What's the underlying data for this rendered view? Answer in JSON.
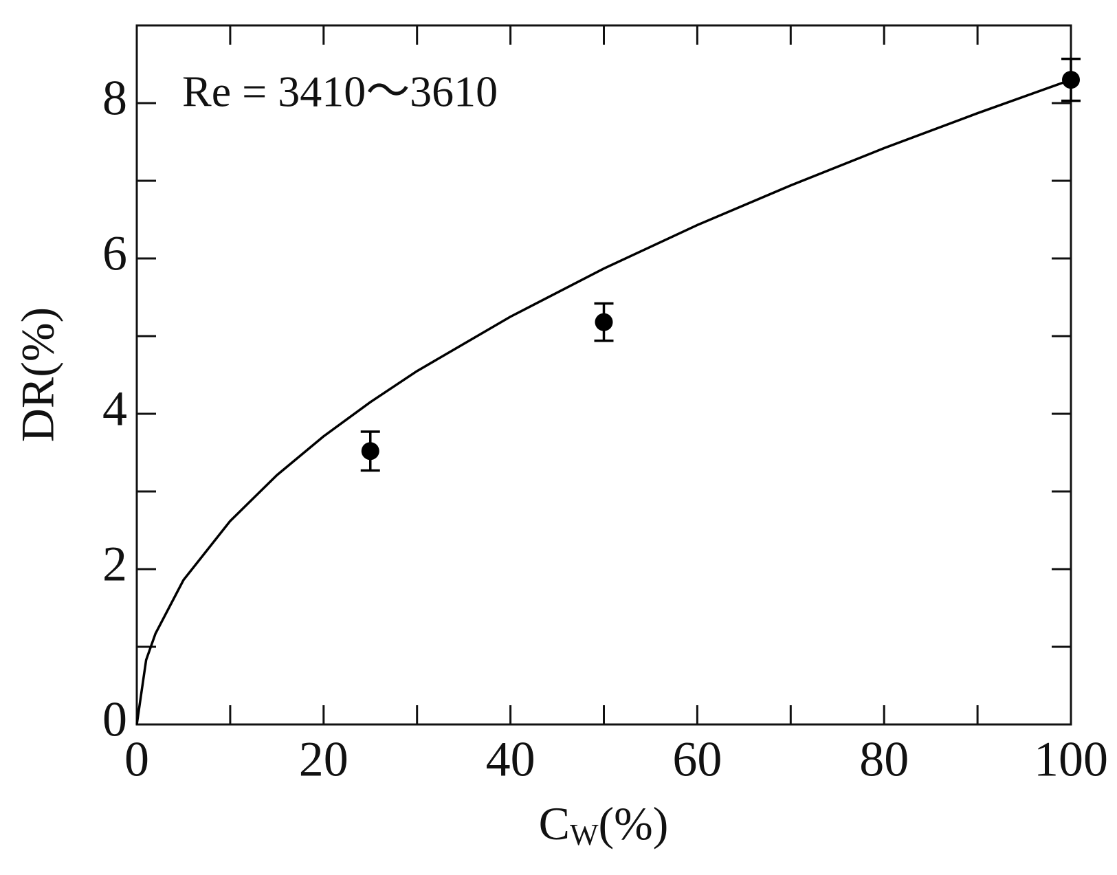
{
  "chart_data": {
    "type": "scatter",
    "annotation": "Re = 3410～3610",
    "x_label": {
      "base": "C",
      "subscript": "W",
      "suffix": "(%)"
    },
    "y_label": "DR(%)",
    "xlim": [
      0,
      100
    ],
    "xticks": [
      0,
      20,
      40,
      60,
      80,
      100
    ],
    "x_minor_ticks": [
      10,
      30,
      50,
      70,
      90
    ],
    "ylim": [
      0,
      9
    ],
    "yticks": [
      0,
      2,
      4,
      6,
      8
    ],
    "y_minor_ticks": [
      1,
      3,
      5,
      7,
      9
    ],
    "series": [
      {
        "style": "line",
        "color": "#000000",
        "x": [
          0,
          1,
          2,
          5,
          10,
          15,
          20,
          25,
          30,
          40,
          50,
          60,
          70,
          80,
          90,
          100
        ],
        "values": [
          0,
          0.83,
          1.17,
          1.86,
          2.62,
          3.21,
          3.71,
          4.15,
          4.55,
          5.25,
          5.87,
          6.43,
          6.94,
          7.42,
          7.87,
          8.3
        ]
      },
      {
        "style": "markers",
        "color": "#000000",
        "x": [
          25,
          50,
          100
        ],
        "values": [
          3.52,
          5.18,
          8.3
        ],
        "errors": [
          0.25,
          0.24,
          0.27
        ]
      }
    ]
  }
}
